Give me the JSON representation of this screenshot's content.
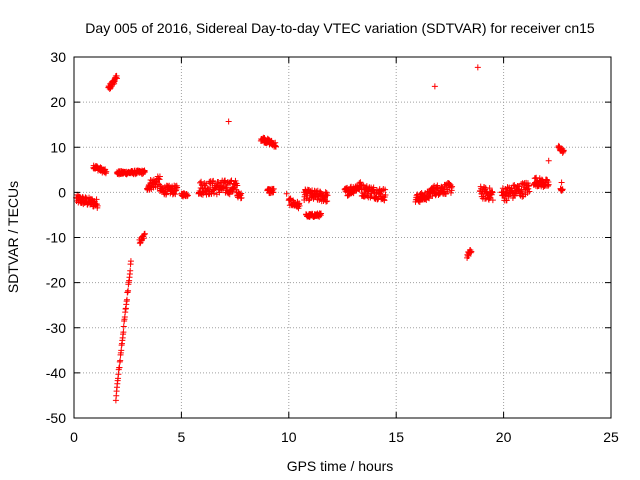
{
  "chart_data": {
    "type": "scatter",
    "title": "Day 005 of 2016, Sidereal Day-to-day VTEC variation (SDTVAR) for receiver cn15",
    "xlabel": "GPS time / hours",
    "ylabel": "SDTVAR / TECUs",
    "xlim": [
      0,
      25
    ],
    "ylim": [
      -50,
      30
    ],
    "xticks": [
      0,
      5,
      10,
      15,
      20,
      25
    ],
    "yticks": [
      -50,
      -40,
      -30,
      -20,
      -10,
      0,
      10,
      20,
      30
    ],
    "grid": true,
    "marker": "+",
    "color": "#ff0000",
    "segments": [
      {
        "x": [
          0.1,
          1.1
        ],
        "y": [
          -1.5,
          -2.5
        ],
        "spread": 1.0
      },
      {
        "x": [
          0.9,
          1.5
        ],
        "y": [
          5.8,
          4.5
        ],
        "spread": 0.5
      },
      {
        "x": [
          1.6,
          2.0
        ],
        "y": [
          23.0,
          25.5
        ],
        "spread": 0.6
      },
      {
        "x": [
          1.95,
          2.65
        ],
        "y": [
          -45.5,
          -15.5
        ],
        "spread": 0.6
      },
      {
        "x": [
          2.0,
          3.3
        ],
        "y": [
          4.3,
          4.5
        ],
        "spread": 0.4
      },
      {
        "x": [
          3.05,
          3.3
        ],
        "y": [
          -11.0,
          -9.5
        ],
        "spread": 0.6
      },
      {
        "x": [
          3.4,
          4.0
        ],
        "y": [
          1.5,
          2.5
        ],
        "spread": 1.2
      },
      {
        "x": [
          4.0,
          4.8
        ],
        "y": [
          0.5,
          0.5
        ],
        "spread": 1.0
      },
      {
        "x": [
          5.0,
          5.3
        ],
        "y": [
          -0.5,
          -0.5
        ],
        "spread": 0.4
      },
      {
        "x": [
          5.8,
          7.6
        ],
        "y": [
          1.0,
          1.2
        ],
        "spread": 1.6
      },
      {
        "x": [
          7.6,
          7.8
        ],
        "y": [
          -0.5,
          -0.8
        ],
        "spread": 0.6
      },
      {
        "x": [
          8.7,
          9.4
        ],
        "y": [
          12.0,
          10.5
        ],
        "spread": 0.6
      },
      {
        "x": [
          9.0,
          9.3
        ],
        "y": [
          0.3,
          0.3
        ],
        "spread": 0.6
      },
      {
        "x": [
          10.0,
          10.5
        ],
        "y": [
          -2.0,
          -3.0
        ],
        "spread": 0.8
      },
      {
        "x": [
          10.7,
          11.8
        ],
        "y": [
          -0.5,
          -1.0
        ],
        "spread": 1.2
      },
      {
        "x": [
          10.8,
          11.5
        ],
        "y": [
          -5.2,
          -5.0
        ],
        "spread": 0.4
      },
      {
        "x": [
          12.6,
          13.4
        ],
        "y": [
          0.0,
          1.5
        ],
        "spread": 1.0
      },
      {
        "x": [
          13.4,
          14.5
        ],
        "y": [
          0.5,
          -0.5
        ],
        "spread": 1.4
      },
      {
        "x": [
          15.9,
          16.6
        ],
        "y": [
          -1.5,
          -0.5
        ],
        "spread": 1.0
      },
      {
        "x": [
          16.6,
          17.6
        ],
        "y": [
          0.3,
          1.0
        ],
        "spread": 1.2
      },
      {
        "x": [
          18.3,
          18.5
        ],
        "y": [
          -14.0,
          -13.0
        ],
        "spread": 0.6
      },
      {
        "x": [
          18.9,
          19.5
        ],
        "y": [
          0.0,
          -0.5
        ],
        "spread": 1.4
      },
      {
        "x": [
          19.9,
          21.2
        ],
        "y": [
          -0.5,
          1.0
        ],
        "spread": 1.6
      },
      {
        "x": [
          21.4,
          22.1
        ],
        "y": [
          2.5,
          1.8
        ],
        "spread": 1.0
      },
      {
        "x": [
          22.55,
          22.8
        ],
        "y": [
          10.0,
          9.0
        ],
        "spread": 0.5
      },
      {
        "x": [
          22.65,
          22.75
        ],
        "y": [
          0.6,
          0.6
        ],
        "spread": 0.3
      }
    ],
    "isolated_points": [
      {
        "x": 7.2,
        "y": 15.7
      },
      {
        "x": 16.8,
        "y": 23.5
      },
      {
        "x": 18.8,
        "y": 27.7
      },
      {
        "x": 22.1,
        "y": 7.0
      },
      {
        "x": 22.7,
        "y": 2.2
      },
      {
        "x": 9.9,
        "y": -0.3
      }
    ]
  }
}
